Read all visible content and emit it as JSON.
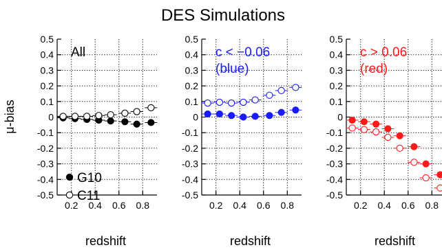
{
  "figure": {
    "title": "DES Simulations",
    "ylabel": "μ-bias",
    "legend": {
      "filled": "G10",
      "open": "C11"
    }
  },
  "chart_data": [
    {
      "type": "scatter",
      "panel_label": "All",
      "xlabel": "redshift",
      "ylabel": "μ-bias",
      "xlim": [
        0.08,
        0.92
      ],
      "ylim": [
        -0.5,
        0.5
      ],
      "x_ticks": [
        "0.2",
        "0.4",
        "0.6",
        "0.8"
      ],
      "y_ticks": [
        "0.5",
        "0.4",
        "0.3",
        "0.2",
        "0.1",
        "0",
        "-0.1",
        "-0.2",
        "-0.3",
        "-0.4",
        "-0.5"
      ],
      "grid": true,
      "label_color": "#000000",
      "series": [
        {
          "name": "G10",
          "marker": "filled",
          "x": [
            0.13,
            0.23,
            0.33,
            0.43,
            0.53,
            0.65,
            0.75,
            0.87
          ],
          "y": [
            -0.005,
            -0.01,
            -0.015,
            -0.02,
            -0.025,
            -0.03,
            -0.045,
            -0.035
          ]
        },
        {
          "name": "C11",
          "marker": "open",
          "x": [
            0.13,
            0.23,
            0.33,
            0.43,
            0.53,
            0.65,
            0.75,
            0.87
          ],
          "y": [
            0.005,
            0.005,
            0.005,
            0.01,
            0.015,
            0.025,
            0.035,
            0.06
          ]
        }
      ]
    },
    {
      "type": "scatter",
      "panel_label": [
        "c < −0.06",
        "(blue)"
      ],
      "xlabel": "redshift",
      "xlim": [
        0.08,
        0.92
      ],
      "ylim": [
        -0.5,
        0.5
      ],
      "x_ticks": [
        "0.2",
        "0.4",
        "0.6",
        "0.8"
      ],
      "y_ticks": [
        "0.5",
        "0.4",
        "0.3",
        "0.2",
        "0.1",
        "0",
        "-0.1",
        "-0.2",
        "-0.3",
        "-0.4",
        "-0.5"
      ],
      "grid": true,
      "label_color": "#1a1aff",
      "series": [
        {
          "name": "G10",
          "marker": "filled",
          "x": [
            0.13,
            0.23,
            0.33,
            0.43,
            0.53,
            0.65,
            0.75,
            0.87
          ],
          "y": [
            0.02,
            0.02,
            0.01,
            0.0,
            0.005,
            0.01,
            0.03,
            0.045
          ]
        },
        {
          "name": "C11",
          "marker": "open",
          "x": [
            0.13,
            0.23,
            0.33,
            0.43,
            0.53,
            0.65,
            0.75,
            0.87
          ],
          "y": [
            0.09,
            0.095,
            0.09,
            0.095,
            0.11,
            0.14,
            0.17,
            0.19
          ]
        }
      ]
    },
    {
      "type": "scatter",
      "panel_label": [
        "c > 0.06",
        "(red)"
      ],
      "xlabel": "redshift",
      "xlim": [
        0.08,
        0.92
      ],
      "ylim": [
        -0.5,
        0.5
      ],
      "x_ticks": [
        "0.2",
        "0.4",
        "0.6",
        "0.8"
      ],
      "y_ticks": [
        "0.5",
        "0.4",
        "0.3",
        "0.2",
        "0.1",
        "0",
        "-0.1",
        "-0.2",
        "-0.3",
        "-0.4",
        "-0.5"
      ],
      "grid": true,
      "label_color": "#ff1a1a",
      "series": [
        {
          "name": "G10",
          "marker": "filled",
          "x": [
            0.13,
            0.23,
            0.33,
            0.43,
            0.53,
            0.65,
            0.75,
            0.87
          ],
          "y": [
            -0.02,
            -0.03,
            -0.045,
            -0.075,
            -0.12,
            -0.19,
            -0.3,
            -0.37
          ]
        },
        {
          "name": "C11",
          "marker": "open",
          "x": [
            0.13,
            0.23,
            0.33,
            0.43,
            0.53,
            0.65,
            0.75,
            0.87
          ],
          "y": [
            -0.07,
            -0.08,
            -0.095,
            -0.13,
            -0.2,
            -0.29,
            -0.39,
            -0.455
          ]
        }
      ]
    }
  ],
  "colors": {
    "panel1_markers": "#000000",
    "panel2_markers": "#1a1aff",
    "panel3_markers": "#ff1a1a"
  }
}
